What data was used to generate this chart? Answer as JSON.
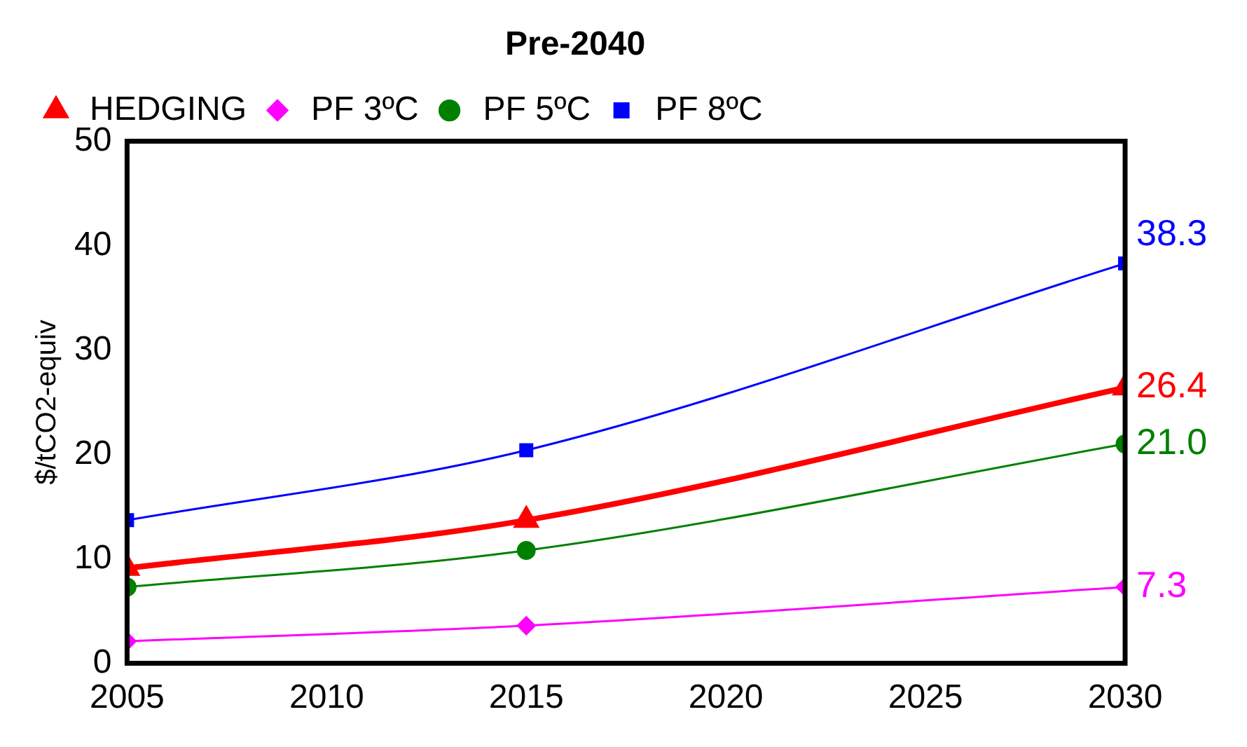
{
  "chart_data": {
    "type": "line",
    "title": "Pre-2040",
    "ylabel": "$/tCO2-equiv",
    "x": [
      2005,
      2015,
      2030
    ],
    "series": [
      {
        "name": "HEDGING",
        "color": "#ff0000",
        "marker": "triangle",
        "values": [
          9.1,
          13.7,
          26.4
        ],
        "value_labels": [
          null,
          null,
          "26.4"
        ]
      },
      {
        "name": "PF 3ºC",
        "color": "#ff00ff",
        "marker": "diamond",
        "values": [
          2.1,
          3.6,
          7.3
        ],
        "value_labels": [
          null,
          null,
          "7.3"
        ]
      },
      {
        "name": "PF 5ºC",
        "color": "#008000",
        "marker": "circle",
        "values": [
          7.3,
          10.8,
          21.0
        ],
        "value_labels": [
          null,
          null,
          "21.0"
        ]
      },
      {
        "name": "PF 8ºC",
        "color": "#0000ff",
        "marker": "square",
        "values": [
          13.7,
          20.4,
          38.3
        ],
        "value_labels": [
          null,
          null,
          "38.3"
        ]
      }
    ],
    "xlim": [
      2005,
      2030
    ],
    "xticks": [
      2005,
      2010,
      2015,
      2020,
      2025,
      2030
    ],
    "ylim": [
      0,
      50
    ],
    "yticks": [
      0,
      10,
      20,
      30,
      40,
      50
    ],
    "grid": false,
    "legend": "top left"
  }
}
